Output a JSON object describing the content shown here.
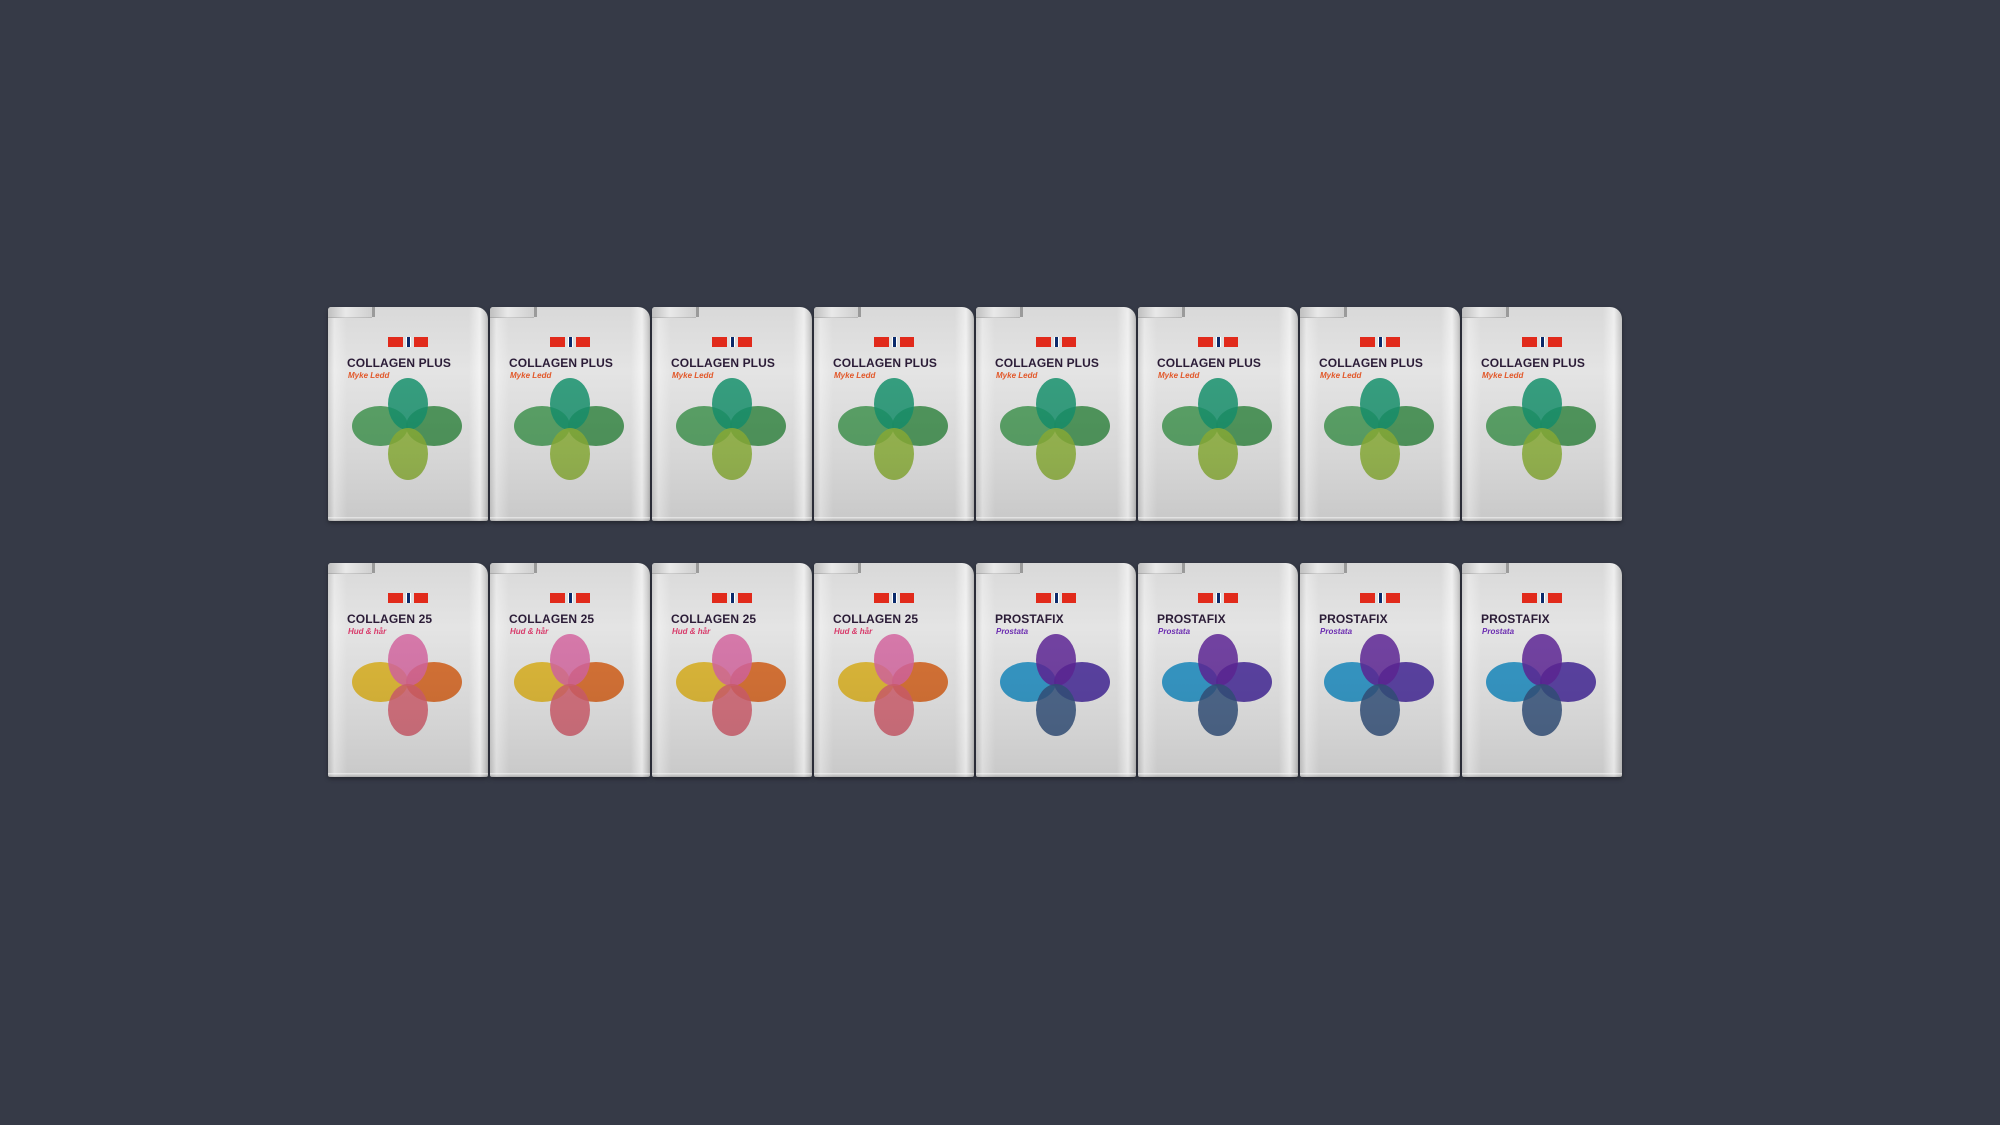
{
  "rows": [
    {
      "packs": [
        {
          "name": "COLLAGEN PLUS",
          "sub": "Myke Ledd",
          "palette": "green"
        },
        {
          "name": "COLLAGEN PLUS",
          "sub": "Myke Ledd",
          "palette": "green"
        },
        {
          "name": "COLLAGEN PLUS",
          "sub": "Myke Ledd",
          "palette": "green"
        },
        {
          "name": "COLLAGEN PLUS",
          "sub": "Myke Ledd",
          "palette": "green"
        },
        {
          "name": "COLLAGEN PLUS",
          "sub": "Myke Ledd",
          "palette": "green"
        },
        {
          "name": "COLLAGEN PLUS",
          "sub": "Myke Ledd",
          "palette": "green"
        },
        {
          "name": "COLLAGEN PLUS",
          "sub": "Myke Ledd",
          "palette": "green"
        },
        {
          "name": "COLLAGEN PLUS",
          "sub": "Myke Ledd",
          "palette": "green"
        }
      ]
    },
    {
      "packs": [
        {
          "name": "COLLAGEN 25",
          "sub": "Hud & hår",
          "palette": "warm"
        },
        {
          "name": "COLLAGEN 25",
          "sub": "Hud & hår",
          "palette": "warm"
        },
        {
          "name": "COLLAGEN 25",
          "sub": "Hud & hår",
          "palette": "warm"
        },
        {
          "name": "COLLAGEN 25",
          "sub": "Hud & hår",
          "palette": "warm"
        },
        {
          "name": "PROSTAFIX",
          "sub": "Prostata",
          "palette": "cool"
        },
        {
          "name": "PROSTAFIX",
          "sub": "Prostata",
          "palette": "cool"
        },
        {
          "name": "PROSTAFIX",
          "sub": "Prostata",
          "palette": "cool"
        },
        {
          "name": "PROSTAFIX",
          "sub": "Prostata",
          "palette": "cool"
        }
      ]
    }
  ],
  "palettes": {
    "green": {
      "subtitle": "#e2582a",
      "top": "#1aa37a",
      "left": "#4aa85a",
      "right": "#3d9a4d",
      "bottom": "#9cc63e"
    },
    "warm": {
      "subtitle": "#d83a6a",
      "top": "#ee72b4",
      "left": "#f5c41f",
      "right": "#ec6a1a",
      "bottom": "#ea6a7a"
    },
    "cool": {
      "subtitle": "#6a2ab0",
      "top": "#6a2aa8",
      "left": "#1a9ad6",
      "right": "#4a2aa8",
      "bottom": "#3a5a8a"
    }
  }
}
